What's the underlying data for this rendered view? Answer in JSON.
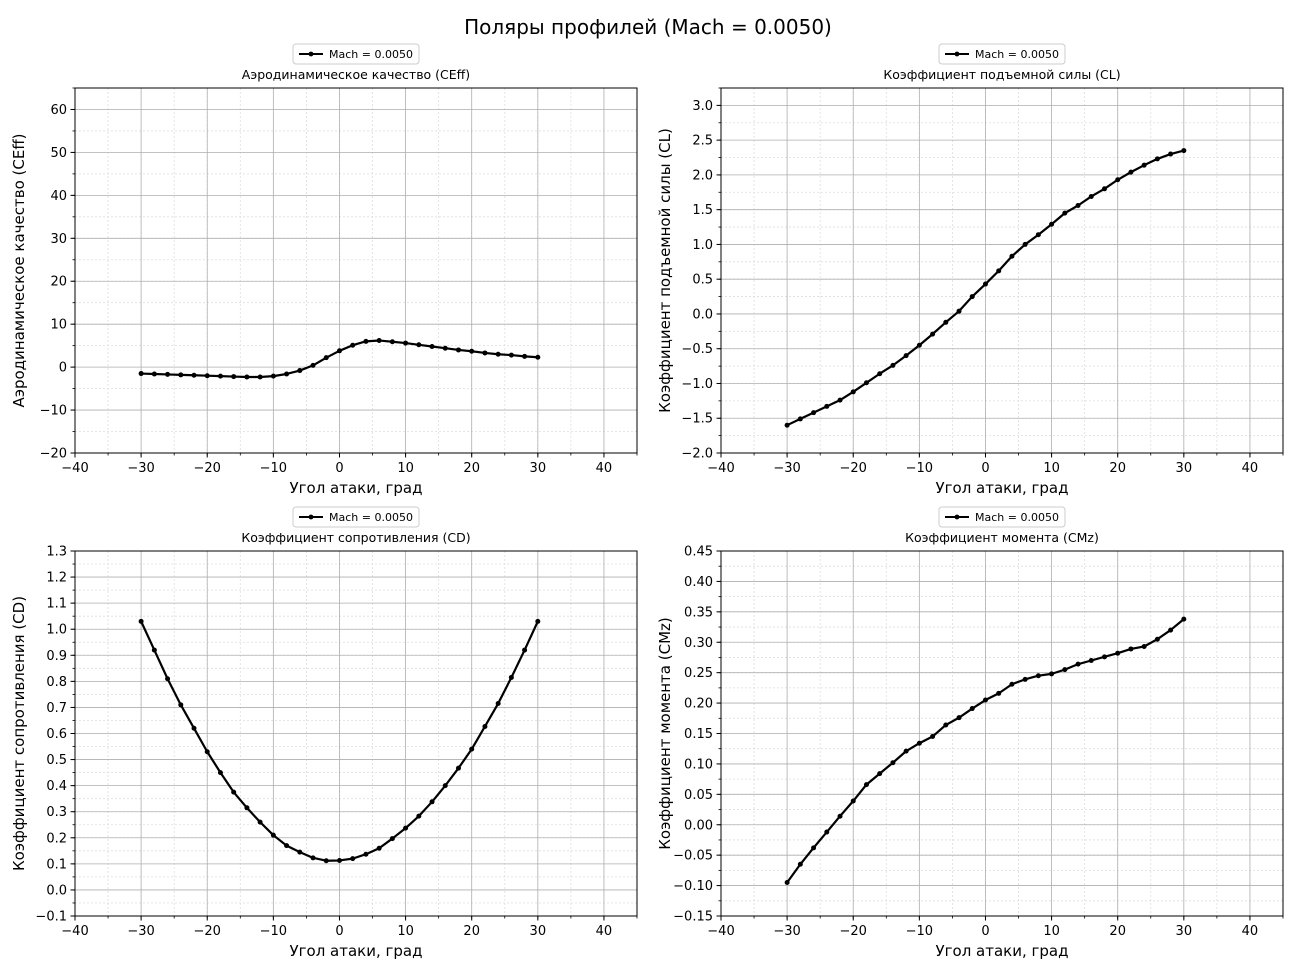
{
  "figure": {
    "suptitle": "Поляры профилей (Mach = 0.0050)",
    "background": "#ffffff",
    "line_color": "#000000",
    "grid_major_color": "#b0b0b0",
    "grid_minor_color": "#dddddd"
  },
  "chart_data": [
    {
      "type": "line",
      "id": "ceff",
      "title": "Аэродинамическое качество (CEff)",
      "xlabel": "Угол атаки, град",
      "ylabel": "Аэродинамическое качество (CEff)",
      "xlim": [
        -40,
        45
      ],
      "ylim": [
        -20,
        65
      ],
      "xticks": [
        -40,
        -30,
        -20,
        -10,
        0,
        10,
        20,
        30,
        40
      ],
      "yticks": [
        -20,
        -10,
        0,
        10,
        20,
        30,
        40,
        50,
        60
      ],
      "ytick_labels": [
        "−20",
        "−10",
        "0",
        "10",
        "20",
        "30",
        "40",
        "50",
        "60"
      ],
      "xminor_step": 5,
      "yminor_step": 5,
      "grid": true,
      "legend": {
        "label": "Mach = 0.0050",
        "position": "above-center"
      },
      "series": [
        {
          "name": "Mach = 0.0050",
          "x": [
            -30,
            -28,
            -26,
            -24,
            -22,
            -20,
            -18,
            -16,
            -14,
            -12,
            -10,
            -8,
            -6,
            -4,
            -2,
            0,
            2,
            4,
            6,
            8,
            10,
            12,
            14,
            16,
            18,
            20,
            22,
            24,
            26,
            28,
            30
          ],
          "y": [
            -1.5,
            -1.6,
            -1.7,
            -1.8,
            -1.9,
            -2.0,
            -2.1,
            -2.2,
            -2.3,
            -2.3,
            -2.1,
            -1.6,
            -0.8,
            0.4,
            2.2,
            3.8,
            5.1,
            6.0,
            6.2,
            5.9,
            5.6,
            5.2,
            4.8,
            4.4,
            4.0,
            3.7,
            3.3,
            3.0,
            2.8,
            2.5,
            2.3
          ]
        }
      ]
    },
    {
      "type": "line",
      "id": "cl",
      "title": "Коэффициент подъемной силы (CL)",
      "xlabel": "Угол атаки, град",
      "ylabel": "Коэффициент подъемной силы (CL)",
      "xlim": [
        -40,
        45
      ],
      "ylim": [
        -2.0,
        3.25
      ],
      "xticks": [
        -40,
        -30,
        -20,
        -10,
        0,
        10,
        20,
        30,
        40
      ],
      "yticks": [
        -2.0,
        -1.5,
        -1.0,
        -0.5,
        0.0,
        0.5,
        1.0,
        1.5,
        2.0,
        2.5,
        3.0
      ],
      "ytick_labels": [
        "−2.0",
        "−1.5",
        "−1.0",
        "−0.5",
        "0.0",
        "0.5",
        "1.0",
        "1.5",
        "2.0",
        "2.5",
        "3.0"
      ],
      "xminor_step": 5,
      "yminor_step": 0.25,
      "grid": true,
      "legend": {
        "label": "Mach = 0.0050",
        "position": "above-center"
      },
      "series": [
        {
          "name": "Mach = 0.0050",
          "x": [
            -30,
            -28,
            -26,
            -24,
            -22,
            -20,
            -18,
            -16,
            -14,
            -12,
            -10,
            -8,
            -6,
            -4,
            -2,
            0,
            2,
            4,
            6,
            8,
            10,
            12,
            14,
            16,
            18,
            20,
            22,
            24,
            26,
            28,
            30
          ],
          "y": [
            -1.6,
            -1.51,
            -1.42,
            -1.33,
            -1.24,
            -1.12,
            -0.99,
            -0.86,
            -0.74,
            -0.6,
            -0.45,
            -0.29,
            -0.12,
            0.04,
            0.25,
            0.43,
            0.62,
            0.83,
            1.0,
            1.14,
            1.29,
            1.45,
            1.56,
            1.69,
            1.8,
            1.93,
            2.04,
            2.14,
            2.23,
            2.3,
            2.35
          ]
        }
      ]
    },
    {
      "type": "line",
      "id": "cd",
      "title": "Коэффициент сопротивления (CD)",
      "xlabel": "Угол атаки, град",
      "ylabel": "Коэффициент сопротивления (CD)",
      "xlim": [
        -40,
        45
      ],
      "ylim": [
        -0.1,
        1.3
      ],
      "xticks": [
        -40,
        -30,
        -20,
        -10,
        0,
        10,
        20,
        30,
        40
      ],
      "yticks": [
        -0.1,
        0.0,
        0.1,
        0.2,
        0.3,
        0.4,
        0.5,
        0.6,
        0.7,
        0.8,
        0.9,
        1.0,
        1.1,
        1.2,
        1.3
      ],
      "ytick_labels": [
        "−0.1",
        "0.0",
        "0.1",
        "0.2",
        "0.3",
        "0.4",
        "0.5",
        "0.6",
        "0.7",
        "0.8",
        "0.9",
        "1.0",
        "1.1",
        "1.2",
        "1.3"
      ],
      "xminor_step": 5,
      "yminor_step": 0.05,
      "grid": true,
      "legend": {
        "label": "Mach = 0.0050",
        "position": "above-center"
      },
      "series": [
        {
          "name": "Mach = 0.0050",
          "x": [
            -30,
            -28,
            -26,
            -24,
            -22,
            -20,
            -18,
            -16,
            -14,
            -12,
            -10,
            -8,
            -6,
            -4,
            -2,
            0,
            2,
            4,
            6,
            8,
            10,
            12,
            14,
            16,
            18,
            20,
            22,
            24,
            26,
            28,
            30
          ],
          "y": [
            1.03,
            0.92,
            0.81,
            0.71,
            0.62,
            0.53,
            0.45,
            0.375,
            0.315,
            0.26,
            0.21,
            0.17,
            0.145,
            0.123,
            0.112,
            0.113,
            0.12,
            0.137,
            0.16,
            0.197,
            0.237,
            0.283,
            0.338,
            0.4,
            0.467,
            0.54,
            0.627,
            0.715,
            0.815,
            0.92,
            1.03
          ]
        }
      ]
    },
    {
      "type": "line",
      "id": "cmz",
      "title": "Коэффициент момента (CMz)",
      "xlabel": "Угол атаки, град",
      "ylabel": "Коэффициент момента (CMz)",
      "xlim": [
        -40,
        45
      ],
      "ylim": [
        -0.15,
        0.45
      ],
      "xticks": [
        -40,
        -30,
        -20,
        -10,
        0,
        10,
        20,
        30,
        40
      ],
      "yticks": [
        -0.15,
        -0.1,
        -0.05,
        0.0,
        0.05,
        0.1,
        0.15,
        0.2,
        0.25,
        0.3,
        0.35,
        0.4,
        0.45
      ],
      "ytick_labels": [
        "−0.15",
        "−0.10",
        "−0.05",
        "0.00",
        "0.05",
        "0.10",
        "0.15",
        "0.20",
        "0.25",
        "0.30",
        "0.35",
        "0.40",
        "0.45"
      ],
      "xminor_step": 5,
      "yminor_step": 0.025,
      "grid": true,
      "legend": {
        "label": "Mach = 0.0050",
        "position": "above-center"
      },
      "series": [
        {
          "name": "Mach = 0.0050",
          "x": [
            -30,
            -28,
            -26,
            -24,
            -22,
            -20,
            -18,
            -16,
            -14,
            -12,
            -10,
            -8,
            -6,
            -4,
            -2,
            0,
            2,
            4,
            6,
            8,
            10,
            12,
            14,
            16,
            18,
            20,
            22,
            24,
            26,
            28,
            30
          ],
          "y": [
            -0.095,
            -0.065,
            -0.038,
            -0.012,
            0.014,
            0.039,
            0.066,
            0.084,
            0.102,
            0.121,
            0.134,
            0.145,
            0.164,
            0.176,
            0.191,
            0.205,
            0.216,
            0.231,
            0.239,
            0.245,
            0.248,
            0.255,
            0.264,
            0.27,
            0.276,
            0.282,
            0.289,
            0.293,
            0.305,
            0.32,
            0.338
          ]
        }
      ]
    }
  ]
}
